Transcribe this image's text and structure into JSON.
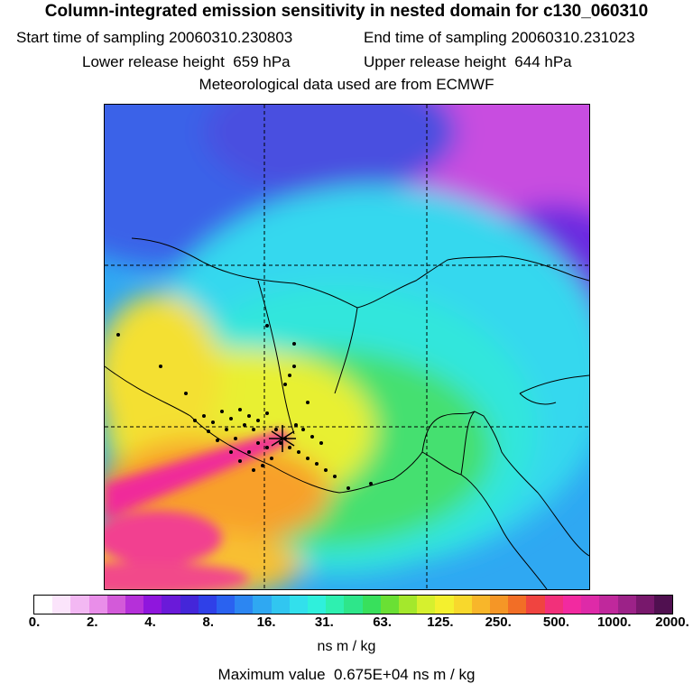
{
  "header": {
    "title": "Column-integrated emission sensitivity in nested domain for c130_060310",
    "start_label": "Start time of sampling",
    "start_value": "20060310.230803",
    "end_label": "End time of sampling",
    "end_value": "20060310.231023",
    "lower_label": "Lower release height",
    "lower_value": "659 hPa",
    "upper_label": "Upper release height",
    "upper_value": "644 hPa",
    "met_note": "Meteorological data used are from ECMWF"
  },
  "colorbar": {
    "colors": [
      "#ffffff",
      "#fbe4fb",
      "#f3b8f3",
      "#e98ee9",
      "#d35ad9",
      "#b530d9",
      "#8f16dd",
      "#6a1ad9",
      "#4426d9",
      "#2f40e8",
      "#2a62f0",
      "#2c86f2",
      "#2fa8f2",
      "#31c6f0",
      "#32e0ec",
      "#2ff0dc",
      "#2ef0b0",
      "#2ee68a",
      "#38e05c",
      "#6ae034",
      "#a4e82c",
      "#d6f02e",
      "#f4f02e",
      "#f8d82c",
      "#f8b62a",
      "#f59626",
      "#f26e26",
      "#f04440",
      "#f2307a",
      "#f22aa0",
      "#de2aa8",
      "#c0289c",
      "#9c2288",
      "#78186c",
      "#501050"
    ],
    "tick_labels": [
      "0.",
      "2.",
      "4.",
      "8.",
      "16.",
      "31.",
      "63.",
      "125.",
      "250.",
      "500.",
      "1000.",
      "2000."
    ],
    "units": "ns m / kg",
    "max_label": "Maximum value",
    "max_value": "0.675E+04 ns m / kg"
  },
  "map": {
    "description_gridlines": true,
    "release_site_color": "#000000",
    "dot_color": "#000000"
  }
}
